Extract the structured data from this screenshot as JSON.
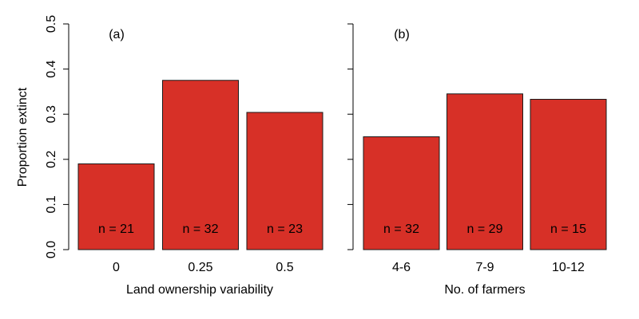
{
  "chart_data": [
    {
      "type": "bar",
      "panel_label": "(a)",
      "categories": [
        "0",
        "0.25",
        "0.5"
      ],
      "values": [
        0.19,
        0.375,
        0.304
      ],
      "annotations": [
        "n = 21",
        "n = 32",
        "n = 23"
      ],
      "xlabel": "Land ownership variability",
      "ylabel": "Proportion extinct",
      "ylim": [
        0,
        0.5
      ],
      "yticks": [
        "0.0",
        "0.1",
        "0.2",
        "0.3",
        "0.4",
        "0.5"
      ],
      "bar_color": "#d73027",
      "grid": false
    },
    {
      "type": "bar",
      "panel_label": "(b)",
      "categories": [
        "4-6",
        "7-9",
        "10-12"
      ],
      "values": [
        0.25,
        0.345,
        0.333
      ],
      "annotations": [
        "n = 32",
        "n = 29",
        "n = 15"
      ],
      "xlabel": "No. of farmers",
      "ylabel": "",
      "ylim": [
        0,
        0.5
      ],
      "yticks": [
        "0.0",
        "0.1",
        "0.2",
        "0.3",
        "0.4",
        "0.5"
      ],
      "bar_color": "#d73027",
      "grid": false
    }
  ]
}
